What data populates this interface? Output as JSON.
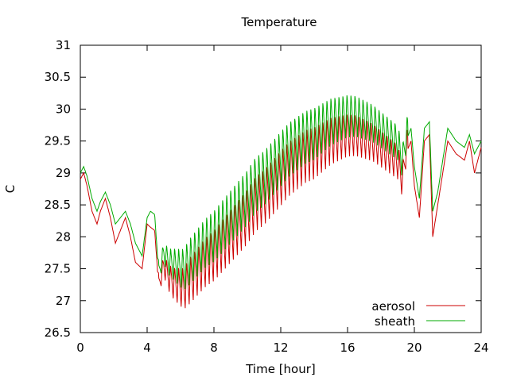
{
  "chart_data": {
    "type": "line",
    "title": "Temperature",
    "xlabel": "Time [hour]",
    "ylabel": "C",
    "xlim": [
      0,
      24
    ],
    "ylim": [
      26.5,
      31
    ],
    "xticks": [
      0,
      4,
      8,
      12,
      16,
      20,
      24
    ],
    "xtick_labels": [
      "0",
      "4",
      "8",
      "12",
      "16",
      "20",
      "24"
    ],
    "yticks": [
      26.5,
      27,
      27.5,
      28,
      28.5,
      29,
      29.5,
      30,
      30.5,
      31
    ],
    "ytick_labels": [
      "26.5",
      "27",
      "27.5",
      "28",
      "28.5",
      "29",
      "29.5",
      "30",
      "30.5",
      "31"
    ],
    "grid": false,
    "legend_position": "bottom-right",
    "series": [
      {
        "name": "aerosol",
        "color": "#cc0000",
        "x": [
          0,
          0.2,
          0.4,
          0.7,
          1.0,
          1.2,
          1.5,
          1.8,
          2.1,
          2.4,
          2.7,
          3.0,
          3.3,
          3.5,
          3.7,
          4.0,
          4.2,
          4.45,
          4.7,
          5.0,
          5.3,
          5.6,
          5.9,
          6.2,
          6.5,
          7.0,
          7.5,
          8.0,
          8.5,
          9.0,
          9.5,
          10.0,
          10.5,
          11.0,
          11.5,
          12.0,
          12.5,
          13.0,
          13.5,
          14.0,
          14.5,
          15.0,
          15.5,
          16.0,
          16.5,
          17.0,
          17.5,
          18.0,
          18.5,
          19.0,
          19.3,
          19.5,
          19.8,
          20.0,
          20.3,
          20.6,
          20.9,
          21.1,
          21.4,
          21.7,
          22.0,
          22.5,
          23.0,
          23.3,
          23.6,
          24.0
        ],
        "y": [
          28.9,
          29.0,
          28.8,
          28.4,
          28.2,
          28.4,
          28.6,
          28.3,
          27.9,
          28.1,
          28.3,
          28.0,
          27.6,
          27.55,
          27.5,
          28.2,
          28.15,
          28.1,
          27.2,
          27.5,
          27.3,
          27.2,
          27.15,
          27.1,
          27.2,
          27.35,
          27.5,
          27.6,
          27.75,
          27.9,
          28.05,
          28.2,
          28.4,
          28.5,
          28.65,
          28.8,
          28.95,
          29.05,
          29.15,
          29.2,
          29.3,
          29.4,
          29.45,
          29.5,
          29.5,
          29.45,
          29.4,
          29.3,
          29.2,
          29.1,
          28.8,
          29.3,
          29.5,
          28.8,
          28.3,
          29.5,
          29.6,
          28.0,
          28.5,
          29.0,
          29.5,
          29.3,
          29.2,
          29.5,
          29.0,
          29.4
        ],
        "oscillation": {
          "from": 4.6,
          "to": 19.6,
          "period": 0.24,
          "amplitude": [
            0.25,
            0.75,
            0.85,
            0.9,
            0.9,
            0.85,
            0.7,
            0.6,
            0.55
          ]
        }
      },
      {
        "name": "sheath",
        "color": "#00aa00",
        "x": [
          0,
          0.2,
          0.4,
          0.7,
          1.0,
          1.2,
          1.5,
          1.8,
          2.1,
          2.4,
          2.7,
          3.0,
          3.3,
          3.5,
          3.7,
          4.0,
          4.2,
          4.45,
          4.7,
          5.0,
          5.3,
          5.6,
          5.9,
          6.2,
          6.5,
          7.0,
          7.5,
          8.0,
          8.5,
          9.0,
          9.5,
          10.0,
          10.5,
          11.0,
          11.5,
          12.0,
          12.5,
          13.0,
          13.5,
          14.0,
          14.5,
          15.0,
          15.5,
          16.0,
          16.5,
          17.0,
          17.5,
          18.0,
          18.5,
          19.0,
          19.3,
          19.5,
          19.8,
          20.0,
          20.3,
          20.6,
          20.9,
          21.1,
          21.4,
          21.7,
          22.0,
          22.5,
          23.0,
          23.3,
          23.6,
          24.0
        ],
        "y": [
          29.0,
          29.1,
          28.95,
          28.6,
          28.4,
          28.55,
          28.7,
          28.5,
          28.2,
          28.3,
          28.4,
          28.2,
          27.9,
          27.8,
          27.7,
          28.3,
          28.4,
          28.35,
          27.4,
          27.7,
          27.55,
          27.5,
          27.45,
          27.4,
          27.5,
          27.65,
          27.8,
          27.9,
          28.05,
          28.2,
          28.35,
          28.5,
          28.7,
          28.8,
          28.95,
          29.1,
          29.25,
          29.35,
          29.45,
          29.5,
          29.6,
          29.7,
          29.75,
          29.8,
          29.8,
          29.75,
          29.7,
          29.6,
          29.5,
          29.4,
          29.1,
          29.5,
          29.7,
          29.1,
          28.6,
          29.7,
          29.8,
          28.4,
          28.7,
          29.2,
          29.7,
          29.5,
          29.4,
          29.6,
          29.3,
          29.5
        ],
        "oscillation": {
          "from": 4.6,
          "to": 19.6,
          "period": 0.24,
          "amplitude": [
            0.25,
            0.75,
            0.85,
            0.9,
            0.9,
            0.85,
            0.7,
            0.6,
            0.55
          ]
        }
      }
    ]
  },
  "colors": {
    "background": "#ffffff",
    "axis": "#000000",
    "aerosol": "#cc0000",
    "sheath": "#00aa00"
  }
}
